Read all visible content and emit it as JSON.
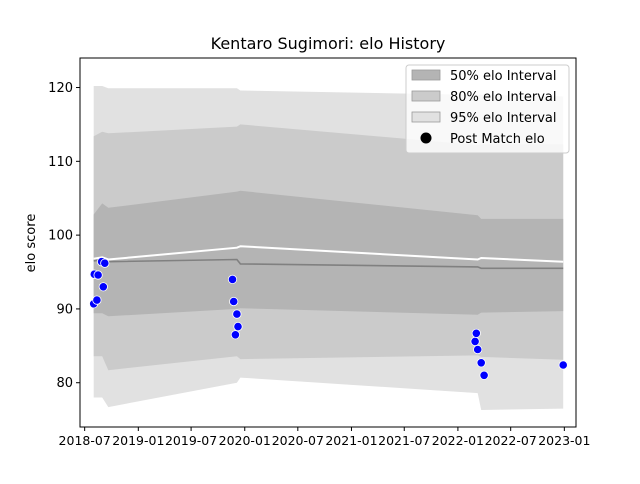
{
  "chart_data": {
    "type": "line",
    "title": "Kentaro Sugimori: elo History",
    "xlabel": "",
    "ylabel": "elo score",
    "xlim": [
      "2018-06-15",
      "2023-02-10"
    ],
    "ylim": [
      74,
      124
    ],
    "x_ticks": [
      "2018-07",
      "2019-01",
      "2019-07",
      "2020-01",
      "2020-07",
      "2021-01",
      "2021-07",
      "2022-01",
      "2022-07",
      "2023-01"
    ],
    "y_ticks": [
      80,
      90,
      100,
      110,
      120
    ],
    "grid": false,
    "legend_position": "top-right",
    "legend": [
      {
        "label": "50% elo Interval",
        "kind": "band"
      },
      {
        "label": "80% elo Interval",
        "kind": "band"
      },
      {
        "label": "95% elo Interval",
        "kind": "band"
      },
      {
        "label": "Post Match elo",
        "kind": "marker"
      }
    ],
    "mean_line": {
      "x": [
        "2018-08-01",
        "2018-08-30",
        "2018-09-20",
        "2019-12-05",
        "2019-12-17",
        "2022-03-10",
        "2022-03-22",
        "2022-12-28"
      ],
      "y": [
        96.5,
        96.7,
        96.4,
        96.7,
        96.1,
        95.7,
        95.5,
        95.5
      ]
    },
    "upper_line": {
      "x": [
        "2018-08-01",
        "2018-08-30",
        "2018-09-20",
        "2019-12-05",
        "2019-12-17",
        "2022-03-10",
        "2022-03-22",
        "2022-12-28"
      ],
      "y": [
        96.8,
        97.0,
        96.7,
        98.3,
        98.5,
        96.7,
        96.9,
        96.4
      ]
    },
    "bands": [
      {
        "level": "95%",
        "x": [
          "2018-08-01",
          "2018-08-30",
          "2018-09-20",
          "2019-12-05",
          "2019-12-17",
          "2022-03-10",
          "2022-03-22",
          "2022-12-28"
        ],
        "upper": [
          120.2,
          120.2,
          119.9,
          119.9,
          119.6,
          119.0,
          119.0,
          118.8
        ],
        "lower": [
          78.0,
          78.0,
          76.7,
          80.0,
          80.7,
          78.6,
          76.3,
          76.5
        ]
      },
      {
        "level": "80%",
        "x": [
          "2018-08-01",
          "2018-08-30",
          "2018-09-20",
          "2019-12-05",
          "2019-12-17",
          "2022-03-10",
          "2022-03-22",
          "2022-12-28"
        ],
        "upper": [
          113.4,
          114.0,
          113.8,
          114.7,
          115.0,
          112.2,
          112.3,
          112.3
        ],
        "lower": [
          83.6,
          83.6,
          81.7,
          83.6,
          83.2,
          83.7,
          83.5,
          83.1
        ]
      },
      {
        "level": "50%",
        "x": [
          "2018-08-01",
          "2018-08-30",
          "2018-09-20",
          "2019-12-05",
          "2019-12-17",
          "2022-03-10",
          "2022-03-22",
          "2022-12-28"
        ],
        "upper": [
          102.8,
          104.3,
          103.7,
          105.9,
          106.0,
          102.7,
          102.2,
          102.2
        ],
        "lower": [
          89.4,
          89.4,
          89.0,
          90.0,
          90.1,
          89.2,
          89.5,
          89.7
        ]
      }
    ],
    "points": {
      "name": "Post Match elo",
      "x": [
        "2018-08-01",
        "2018-08-03",
        "2018-08-12",
        "2018-08-16",
        "2018-08-28",
        "2018-09-03",
        "2018-09-08",
        "2019-11-20",
        "2019-11-24",
        "2019-11-30",
        "2019-12-05",
        "2019-12-09",
        "2022-03-01",
        "2022-03-05",
        "2022-03-10",
        "2022-03-22",
        "2022-04-01",
        "2022-12-28"
      ],
      "y": [
        90.7,
        94.7,
        91.2,
        94.6,
        96.4,
        93.0,
        96.2,
        94.0,
        91.0,
        86.5,
        89.3,
        87.6,
        85.6,
        86.7,
        84.5,
        82.7,
        81.0,
        82.4
      ]
    },
    "colors": {
      "band_95": "#e1e1e1",
      "band_80": "#cbcbcb",
      "band_50": "#b4b4b4",
      "mean": "#808080",
      "upper_line": "#ffffff",
      "marker": "#0000ff"
    }
  }
}
